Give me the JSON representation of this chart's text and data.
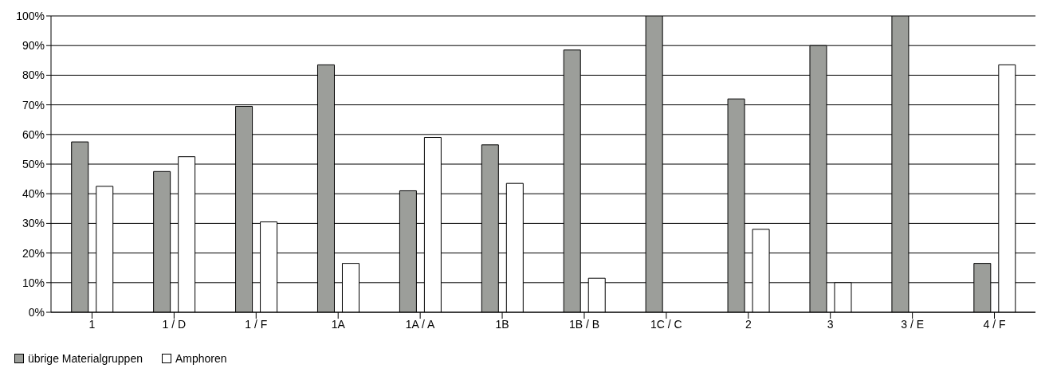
{
  "chart_data": {
    "type": "bar",
    "categories": [
      "1",
      "1 / D",
      "1 / F",
      "1A",
      "1A / A",
      "1B",
      "1B / B",
      "1C / C",
      "2",
      "3",
      "3 / E",
      "4 / F"
    ],
    "series": [
      {
        "name": "übrige Materialgruppen",
        "color": "#9c9e9a",
        "values": [
          57.5,
          47.5,
          69.5,
          83.5,
          41,
          56.5,
          88.5,
          100,
          72,
          90,
          100,
          16.5
        ]
      },
      {
        "name": "Amphoren",
        "color": "#ffffff",
        "values": [
          42.5,
          52.5,
          30.5,
          16.5,
          59,
          43.5,
          11.5,
          0,
          28,
          10,
          0,
          83.5
        ]
      }
    ],
    "ylim": [
      0,
      100
    ],
    "yticks": [
      {
        "value": 0,
        "label": "0%"
      },
      {
        "value": 10,
        "label": "10%"
      },
      {
        "value": 20,
        "label": "20%"
      },
      {
        "value": 30,
        "label": "30%"
      },
      {
        "value": 40,
        "label": "40%"
      },
      {
        "value": 50,
        "label": "50%"
      },
      {
        "value": 60,
        "label": "60%"
      },
      {
        "value": 70,
        "label": "70%"
      },
      {
        "value": 80,
        "label": "80%"
      },
      {
        "value": 90,
        "label": "90%"
      },
      {
        "value": 100,
        "label": "100%"
      }
    ],
    "grid": "y",
    "legend": "bottom left"
  }
}
